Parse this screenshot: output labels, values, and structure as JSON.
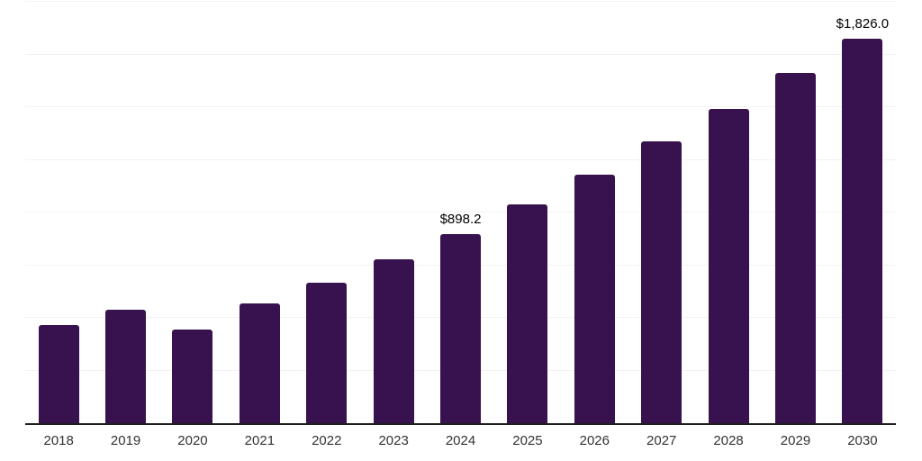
{
  "chart_data": {
    "type": "bar",
    "title": "",
    "xlabel": "",
    "ylabel": "",
    "categories": [
      "2018",
      "2019",
      "2020",
      "2021",
      "2022",
      "2023",
      "2024",
      "2025",
      "2026",
      "2027",
      "2028",
      "2029",
      "2030"
    ],
    "values": [
      466,
      539,
      445,
      569,
      667,
      778,
      898.2,
      1039,
      1180,
      1338,
      1492,
      1663,
      1826.0
    ],
    "data_labels": [
      "",
      "",
      "",
      "",
      "",
      "",
      "$898.2",
      "",
      "",
      "",
      "",
      "",
      "$1,826.0"
    ],
    "ylim": [
      0,
      2000
    ],
    "gridline_step": 250,
    "grid": true,
    "legend": false,
    "colors": {
      "bar": "#38124E",
      "axis_line": "#1f1f1f",
      "gridline": "#f2f2f2",
      "tick_label": "#333333",
      "data_label": "#000000"
    }
  }
}
